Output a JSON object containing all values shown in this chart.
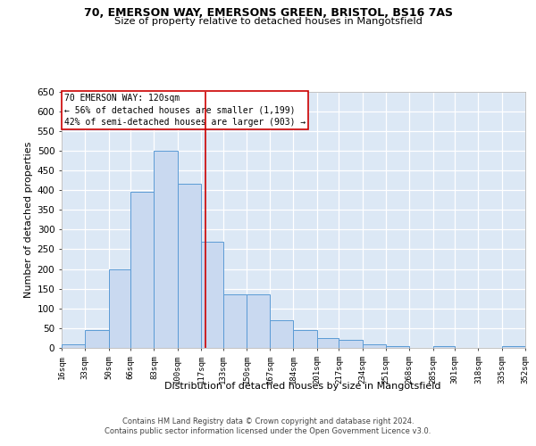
{
  "title_line1": "70, EMERSON WAY, EMERSONS GREEN, BRISTOL, BS16 7AS",
  "title_line2": "Size of property relative to detached houses in Mangotsfield",
  "xlabel": "Distribution of detached houses by size in Mangotsfield",
  "ylabel": "Number of detached properties",
  "annotation_line1": "70 EMERSON WAY: 120sqm",
  "annotation_line2": "← 56% of detached houses are smaller (1,199)",
  "annotation_line3": "42% of semi-detached houses are larger (903) →",
  "footer_line1": "Contains HM Land Registry data © Crown copyright and database right 2024.",
  "footer_line2": "Contains public sector information licensed under the Open Government Licence v3.0.",
  "bar_color": "#c9d9f0",
  "bar_edge_color": "#5b9bd5",
  "background_color": "#dce8f5",
  "grid_color": "#ffffff",
  "vline_x": 120,
  "vline_color": "#cc0000",
  "bin_edges": [
    16,
    33,
    50,
    66,
    83,
    100,
    117,
    133,
    150,
    167,
    184,
    201,
    217,
    234,
    251,
    268,
    285,
    301,
    318,
    335,
    352
  ],
  "bar_heights": [
    10,
    45,
    200,
    395,
    500,
    415,
    270,
    135,
    135,
    70,
    45,
    25,
    20,
    10,
    5,
    0,
    5,
    0,
    0,
    5
  ],
  "tick_labels": [
    "16sqm",
    "33sqm",
    "50sqm",
    "66sqm",
    "83sqm",
    "100sqm",
    "117sqm",
    "133sqm",
    "150sqm",
    "167sqm",
    "184sqm",
    "201sqm",
    "217sqm",
    "234sqm",
    "251sqm",
    "268sqm",
    "285sqm",
    "301sqm",
    "318sqm",
    "335sqm",
    "352sqm"
  ],
  "ylim": [
    0,
    650
  ],
  "yticks": [
    0,
    50,
    100,
    150,
    200,
    250,
    300,
    350,
    400,
    450,
    500,
    550,
    600,
    650
  ]
}
